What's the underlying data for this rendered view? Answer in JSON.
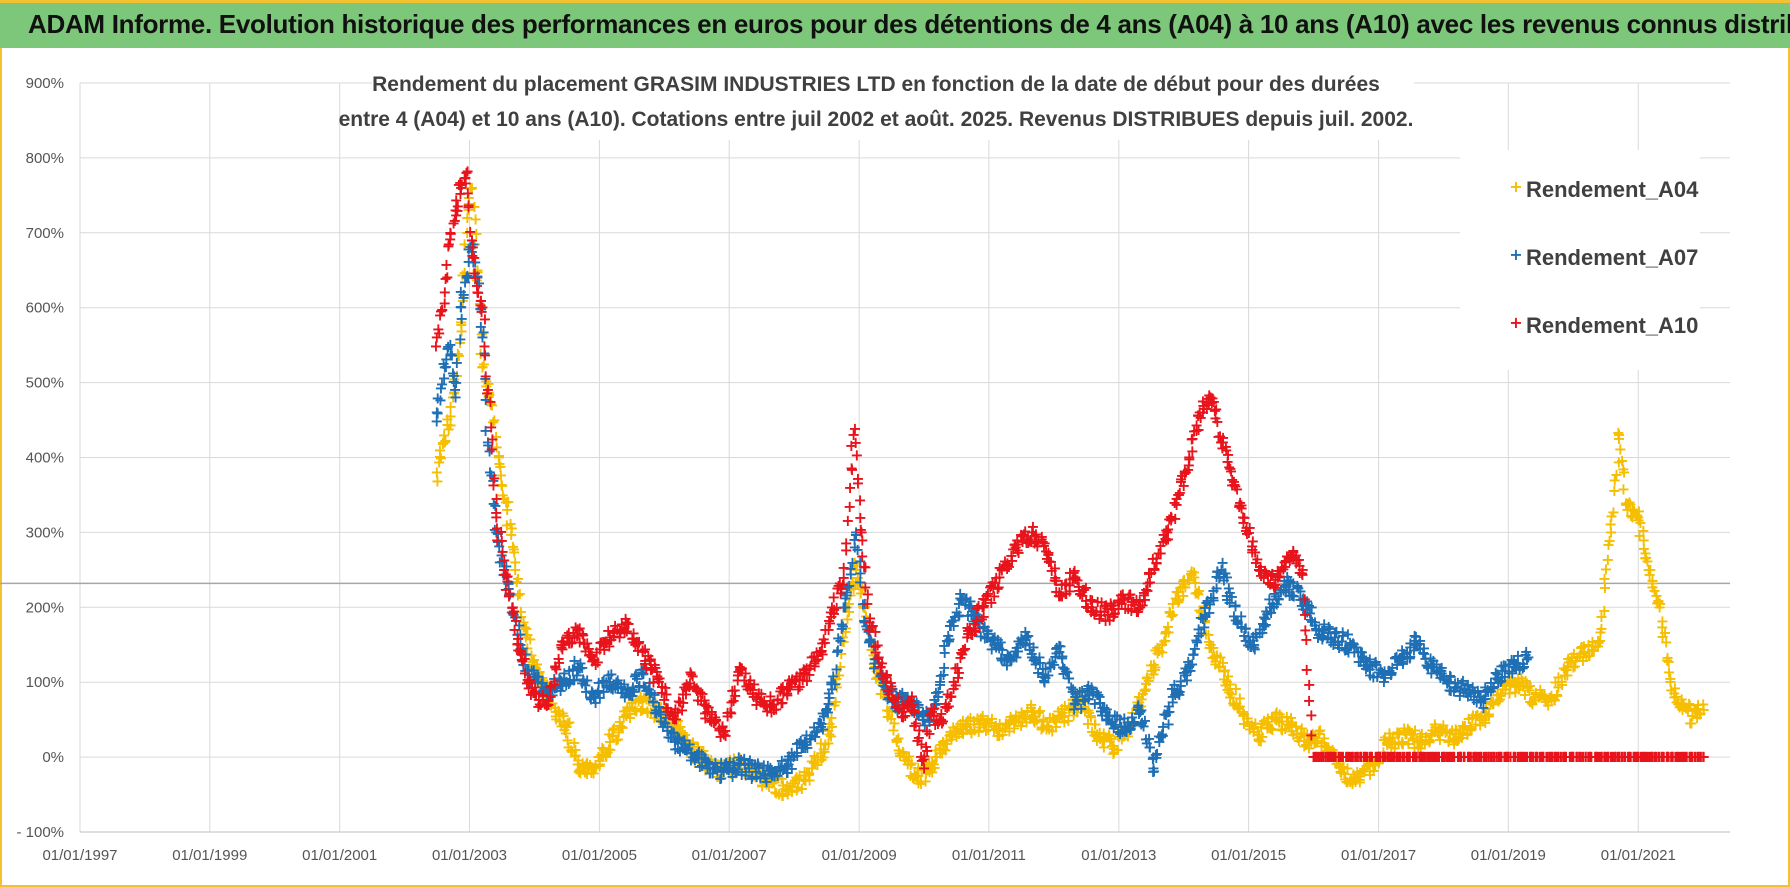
{
  "banner": {
    "title": "ADAM Informe. Evolution historique des performances en euros pour des détentions de 4 ans (A04) à 10 ans (A10) avec les revenus connus distribués"
  },
  "colors": {
    "banner_bg": "#7dc77a",
    "frame": "#f2c230",
    "A04": "#f5be00",
    "A07": "#1f6fb5",
    "A10": "#e8131b"
  },
  "chart_data": {
    "type": "scatter",
    "title_line1": "Rendement du placement GRASIM INDUSTRIES LTD en fonction de la date de début pour des durées",
    "title_line2": "entre 4 (A04) et 10 ans (A10). Cotations entre juil 2002 et août. 2025. Revenus DISTRIBUES depuis juil. 2002.",
    "xlabel": "",
    "ylabel": "",
    "xlim": [
      "1997-01-01",
      "2022-06-01"
    ],
    "ylim": [
      -100,
      900
    ],
    "y_ticks": [
      -100,
      0,
      100,
      200,
      300,
      400,
      500,
      600,
      700,
      800,
      900
    ],
    "y_tick_labels": [
      "- 100%",
      "0%",
      "100%",
      "200%",
      "300%",
      "400%",
      "500%",
      "600%",
      "700%",
      "800%",
      "900%"
    ],
    "x_ticks": [
      "1997-01-01",
      "1999-01-01",
      "2001-01-01",
      "2003-01-01",
      "2005-01-01",
      "2007-01-01",
      "2009-01-01",
      "2011-01-01",
      "2013-01-01",
      "2015-01-01",
      "2017-01-01",
      "2019-01-01",
      "2021-01-01"
    ],
    "x_tick_labels": [
      "01/01/1997",
      "01/01/1999",
      "01/01/2001",
      "01/01/2003",
      "01/01/2005",
      "01/01/2007",
      "01/01/2009",
      "01/01/2011",
      "01/01/2013",
      "01/01/2015",
      "01/01/2017",
      "01/01/2019",
      "01/01/2021"
    ],
    "grid": true,
    "legend_position": "top-right",
    "reference_line_y": 232,
    "series": [
      {
        "name": "Rendement_A04",
        "marker": "+",
        "color": "#f5be00",
        "points": [
          [
            "2002-07-01",
            380
          ],
          [
            "2002-08-15",
            420
          ],
          [
            "2002-10-01",
            480
          ],
          [
            "2002-11-15",
            580
          ],
          [
            "2002-12-20",
            720
          ],
          [
            "2003-01-15",
            760
          ],
          [
            "2003-02-15",
            650
          ],
          [
            "2003-03-15",
            520
          ],
          [
            "2003-05-01",
            470
          ],
          [
            "2003-06-15",
            400
          ],
          [
            "2003-08-01",
            330
          ],
          [
            "2003-09-15",
            260
          ],
          [
            "2003-11-01",
            180
          ],
          [
            "2004-01-01",
            120
          ],
          [
            "2004-03-01",
            90
          ],
          [
            "2004-05-01",
            60
          ],
          [
            "2004-07-01",
            40
          ],
          [
            "2004-09-01",
            -10
          ],
          [
            "2004-11-01",
            -15
          ],
          [
            "2005-01-01",
            -5
          ],
          [
            "2005-03-01",
            20
          ],
          [
            "2005-06-01",
            55
          ],
          [
            "2005-09-01",
            75
          ],
          [
            "2005-12-01",
            60
          ],
          [
            "2006-03-01",
            40
          ],
          [
            "2006-06-01",
            10
          ],
          [
            "2006-09-01",
            -10
          ],
          [
            "2006-12-01",
            -20
          ],
          [
            "2007-03-01",
            -5
          ],
          [
            "2007-06-01",
            -25
          ],
          [
            "2007-09-01",
            -35
          ],
          [
            "2007-12-01",
            -45
          ],
          [
            "2008-03-01",
            -30
          ],
          [
            "2008-06-01",
            5
          ],
          [
            "2008-08-01",
            40
          ],
          [
            "2008-10-01",
            160
          ],
          [
            "2008-12-15",
            250
          ],
          [
            "2009-02-01",
            200
          ],
          [
            "2009-04-01",
            120
          ],
          [
            "2009-06-01",
            80
          ],
          [
            "2009-08-01",
            20
          ],
          [
            "2009-10-01",
            -10
          ],
          [
            "2009-12-01",
            -25
          ],
          [
            "2010-02-01",
            -20
          ],
          [
            "2010-04-01",
            5
          ],
          [
            "2010-06-01",
            30
          ],
          [
            "2010-09-01",
            40
          ],
          [
            "2010-12-01",
            45
          ],
          [
            "2011-03-01",
            35
          ],
          [
            "2011-06-01",
            50
          ],
          [
            "2011-09-01",
            60
          ],
          [
            "2011-12-01",
            40
          ],
          [
            "2012-03-01",
            55
          ],
          [
            "2012-06-01",
            75
          ],
          [
            "2012-09-01",
            30
          ],
          [
            "2012-12-01",
            15
          ],
          [
            "2013-03-01",
            40
          ],
          [
            "2013-06-01",
            90
          ],
          [
            "2013-09-01",
            150
          ],
          [
            "2013-12-01",
            220
          ],
          [
            "2014-03-01",
            240
          ],
          [
            "2014-06-01",
            150
          ],
          [
            "2014-09-01",
            100
          ],
          [
            "2014-12-01",
            60
          ],
          [
            "2015-03-01",
            30
          ],
          [
            "2015-06-01",
            50
          ],
          [
            "2015-09-01",
            40
          ],
          [
            "2015-12-01",
            20
          ],
          [
            "2016-03-01",
            25
          ],
          [
            "2016-06-01",
            -20
          ],
          [
            "2016-09-01",
            -30
          ],
          [
            "2016-12-01",
            -10
          ],
          [
            "2017-03-01",
            20
          ],
          [
            "2017-06-01",
            30
          ],
          [
            "2017-09-01",
            20
          ],
          [
            "2017-12-01",
            35
          ],
          [
            "2018-03-01",
            25
          ],
          [
            "2018-06-01",
            40
          ],
          [
            "2018-09-01",
            55
          ],
          [
            "2018-12-01",
            90
          ],
          [
            "2019-03-01",
            100
          ],
          [
            "2019-06-01",
            80
          ],
          [
            "2019-09-01",
            75
          ],
          [
            "2019-12-01",
            120
          ],
          [
            "2020-03-01",
            140
          ],
          [
            "2020-06-01",
            155
          ],
          [
            "2020-08-01",
            300
          ],
          [
            "2020-09-15",
            430
          ],
          [
            "2020-11-01",
            330
          ],
          [
            "2021-01-01",
            320
          ],
          [
            "2021-03-01",
            250
          ],
          [
            "2021-05-01",
            200
          ],
          [
            "2021-07-01",
            100
          ],
          [
            "2021-09-01",
            70
          ],
          [
            "2021-11-01",
            55
          ],
          [
            "2022-01-01",
            70
          ]
        ]
      },
      {
        "name": "Rendement_A07",
        "marker": "+",
        "color": "#1f6fb5",
        "points": [
          [
            "2002-07-01",
            460
          ],
          [
            "2002-08-15",
            520
          ],
          [
            "2002-09-15",
            550
          ],
          [
            "2002-10-15",
            480
          ],
          [
            "2002-11-15",
            600
          ],
          [
            "2002-12-15",
            640
          ],
          [
            "2003-01-15",
            690
          ],
          [
            "2003-02-15",
            640
          ],
          [
            "2003-03-15",
            560
          ],
          [
            "2003-04-15",
            420
          ],
          [
            "2003-06-01",
            300
          ],
          [
            "2003-07-15",
            250
          ],
          [
            "2003-09-01",
            200
          ],
          [
            "2003-10-15",
            150
          ],
          [
            "2003-12-01",
            110
          ],
          [
            "2004-03-01",
            90
          ],
          [
            "2004-06-01",
            95
          ],
          [
            "2004-09-01",
            120
          ],
          [
            "2004-12-01",
            80
          ],
          [
            "2005-03-01",
            100
          ],
          [
            "2005-06-01",
            85
          ],
          [
            "2005-09-01",
            110
          ],
          [
            "2005-12-01",
            60
          ],
          [
            "2006-03-01",
            20
          ],
          [
            "2006-06-01",
            5
          ],
          [
            "2006-09-01",
            -15
          ],
          [
            "2006-12-01",
            -20
          ],
          [
            "2007-03-01",
            -10
          ],
          [
            "2007-06-01",
            -20
          ],
          [
            "2007-09-01",
            -25
          ],
          [
            "2007-12-01",
            -10
          ],
          [
            "2008-03-01",
            20
          ],
          [
            "2008-06-01",
            40
          ],
          [
            "2008-08-01",
            90
          ],
          [
            "2008-10-15",
            200
          ],
          [
            "2008-12-15",
            300
          ],
          [
            "2009-02-01",
            180
          ],
          [
            "2009-04-01",
            130
          ],
          [
            "2009-06-01",
            90
          ],
          [
            "2009-08-01",
            70
          ],
          [
            "2009-10-01",
            80
          ],
          [
            "2009-12-01",
            60
          ],
          [
            "2010-02-01",
            50
          ],
          [
            "2010-04-01",
            100
          ],
          [
            "2010-06-01",
            175
          ],
          [
            "2010-08-01",
            210
          ],
          [
            "2010-11-01",
            180
          ],
          [
            "2011-02-01",
            150
          ],
          [
            "2011-05-01",
            130
          ],
          [
            "2011-08-01",
            160
          ],
          [
            "2011-11-01",
            110
          ],
          [
            "2012-02-01",
            140
          ],
          [
            "2012-05-01",
            70
          ],
          [
            "2012-08-01",
            90
          ],
          [
            "2012-11-01",
            50
          ],
          [
            "2013-02-01",
            40
          ],
          [
            "2013-05-01",
            60
          ],
          [
            "2013-07-15",
            -15
          ],
          [
            "2013-09-01",
            30
          ],
          [
            "2013-11-01",
            80
          ],
          [
            "2014-02-01",
            120
          ],
          [
            "2014-05-01",
            190
          ],
          [
            "2014-08-01",
            250
          ],
          [
            "2014-11-01",
            180
          ],
          [
            "2015-02-01",
            150
          ],
          [
            "2015-05-01",
            200
          ],
          [
            "2015-08-01",
            230
          ],
          [
            "2015-11-01",
            210
          ],
          [
            "2016-02-01",
            170
          ],
          [
            "2016-05-01",
            160
          ],
          [
            "2016-08-01",
            150
          ],
          [
            "2016-11-01",
            120
          ],
          [
            "2017-02-01",
            110
          ],
          [
            "2017-05-01",
            130
          ],
          [
            "2017-08-01",
            150
          ],
          [
            "2017-11-01",
            120
          ],
          [
            "2018-02-01",
            100
          ],
          [
            "2018-05-01",
            90
          ],
          [
            "2018-08-01",
            75
          ],
          [
            "2018-11-01",
            110
          ],
          [
            "2019-02-01",
            120
          ],
          [
            "2019-04-15",
            130
          ]
        ]
      },
      {
        "name": "Rendement_A10",
        "marker": "+",
        "color": "#e8131b",
        "points": [
          [
            "2002-07-01",
            560
          ],
          [
            "2002-08-15",
            620
          ],
          [
            "2002-09-15",
            700
          ],
          [
            "2002-10-15",
            730
          ],
          [
            "2002-11-15",
            760
          ],
          [
            "2002-12-15",
            780
          ],
          [
            "2003-01-15",
            690
          ],
          [
            "2003-02-15",
            620
          ],
          [
            "2003-03-15",
            600
          ],
          [
            "2003-04-15",
            490
          ],
          [
            "2003-06-01",
            320
          ],
          [
            "2003-07-15",
            250
          ],
          [
            "2003-09-01",
            200
          ],
          [
            "2003-10-15",
            140
          ],
          [
            "2003-12-01",
            100
          ],
          [
            "2004-02-01",
            70
          ],
          [
            "2004-04-01",
            80
          ],
          [
            "2004-06-01",
            150
          ],
          [
            "2004-09-01",
            170
          ],
          [
            "2004-12-01",
            130
          ],
          [
            "2005-03-01",
            160
          ],
          [
            "2005-06-01",
            180
          ],
          [
            "2005-09-01",
            140
          ],
          [
            "2005-12-01",
            100
          ],
          [
            "2006-03-01",
            50
          ],
          [
            "2006-06-01",
            110
          ],
          [
            "2006-09-01",
            60
          ],
          [
            "2006-12-01",
            30
          ],
          [
            "2007-03-01",
            120
          ],
          [
            "2007-06-01",
            80
          ],
          [
            "2007-09-01",
            70
          ],
          [
            "2007-12-01",
            90
          ],
          [
            "2008-03-01",
            110
          ],
          [
            "2008-06-01",
            140
          ],
          [
            "2008-08-01",
            200
          ],
          [
            "2008-10-01",
            230
          ],
          [
            "2008-12-01",
            430
          ],
          [
            "2009-01-15",
            300
          ],
          [
            "2009-03-01",
            180
          ],
          [
            "2009-05-01",
            120
          ],
          [
            "2009-07-01",
            90
          ],
          [
            "2009-09-01",
            60
          ],
          [
            "2009-11-01",
            70
          ],
          [
            "2010-01-01",
            -15
          ],
          [
            "2010-02-15",
            60
          ],
          [
            "2010-04-01",
            50
          ],
          [
            "2010-06-01",
            80
          ],
          [
            "2010-09-01",
            160
          ],
          [
            "2010-12-01",
            200
          ],
          [
            "2011-03-01",
            240
          ],
          [
            "2011-06-01",
            280
          ],
          [
            "2011-09-01",
            300
          ],
          [
            "2011-12-01",
            270
          ],
          [
            "2012-02-01",
            220
          ],
          [
            "2012-05-01",
            240
          ],
          [
            "2012-08-01",
            200
          ],
          [
            "2012-11-01",
            190
          ],
          [
            "2013-02-01",
            210
          ],
          [
            "2013-05-01",
            200
          ],
          [
            "2013-08-01",
            265
          ],
          [
            "2013-10-01",
            300
          ],
          [
            "2013-12-01",
            350
          ],
          [
            "2014-02-01",
            400
          ],
          [
            "2014-04-01",
            460
          ],
          [
            "2014-06-01",
            480
          ],
          [
            "2014-08-01",
            420
          ],
          [
            "2014-10-01",
            370
          ],
          [
            "2014-12-01",
            320
          ],
          [
            "2015-03-01",
            250
          ],
          [
            "2015-06-01",
            230
          ],
          [
            "2015-09-01",
            270
          ],
          [
            "2015-11-01",
            250
          ],
          [
            "2016-01-01",
            0
          ],
          [
            "2017-01-01",
            0
          ],
          [
            "2018-01-01",
            0
          ],
          [
            "2019-01-01",
            0
          ],
          [
            "2020-01-01",
            0
          ],
          [
            "2021-01-01",
            0
          ],
          [
            "2022-01-01",
            0
          ]
        ]
      }
    ]
  }
}
